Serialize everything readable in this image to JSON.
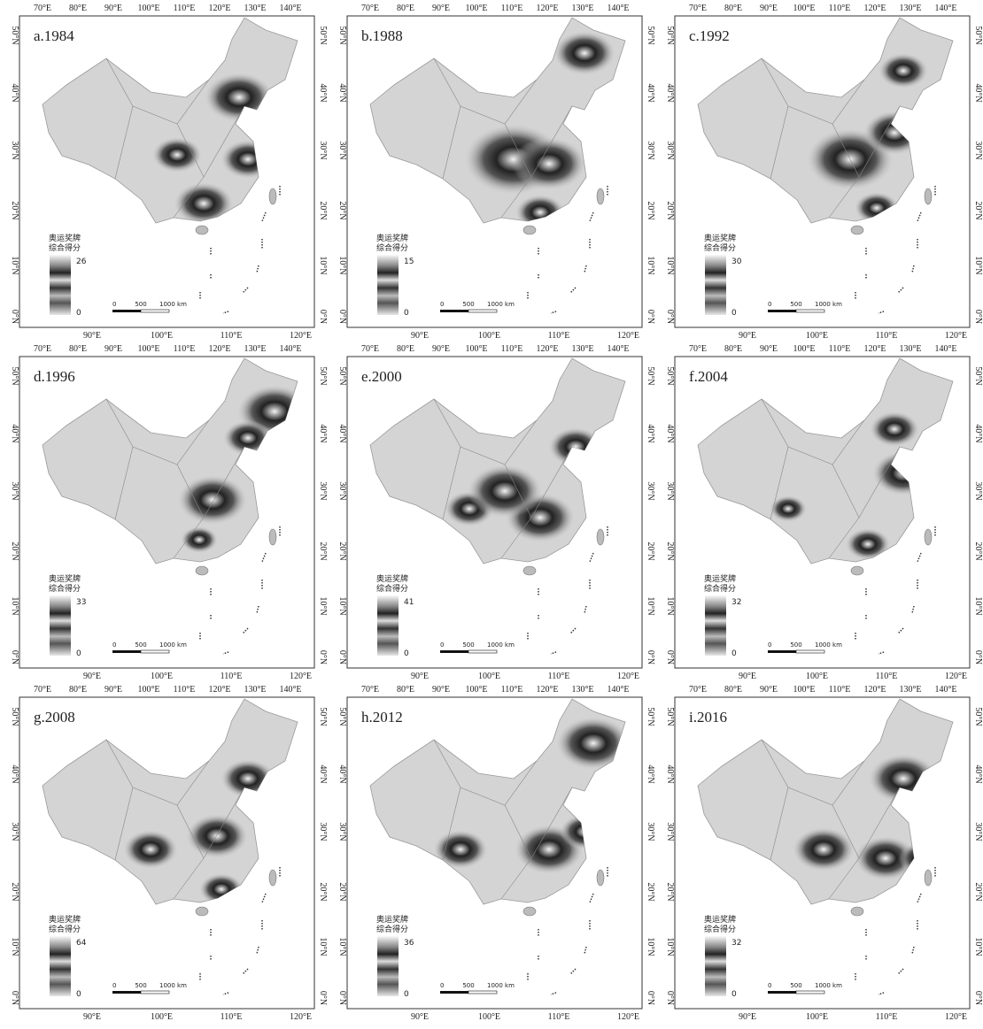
{
  "axes": {
    "top": [
      "70°E",
      "80°E",
      "90°E",
      "100°E",
      "110°E",
      "120°E",
      "130°E",
      "140°E"
    ],
    "bottom": [
      "90°E",
      "100°E",
      "110°E",
      "120°E"
    ],
    "latitude": [
      "50°N",
      "40°N",
      "30°N",
      "20°N",
      "10°N",
      "0°N"
    ]
  },
  "legend": {
    "title": [
      "奥运奖牌",
      "综合得分"
    ]
  },
  "scale_bar": [
    "0",
    "500",
    "1000 km"
  ],
  "panels": [
    {
      "label": "a.1984",
      "max": 26,
      "min": 0
    },
    {
      "label": "b.1988",
      "max": 15,
      "min": 0
    },
    {
      "label": "c.1992",
      "max": 30,
      "min": 0
    },
    {
      "label": "d.1996",
      "max": 33,
      "min": 0
    },
    {
      "label": "e.2000",
      "max": 41,
      "min": 0
    },
    {
      "label": "f.2004",
      "max": 32,
      "min": 0
    },
    {
      "label": "g.2008",
      "max": 64,
      "min": 0
    },
    {
      "label": "h.2012",
      "max": 36,
      "min": 0
    },
    {
      "label": "i.2016",
      "max": 32,
      "min": 0
    }
  ]
}
